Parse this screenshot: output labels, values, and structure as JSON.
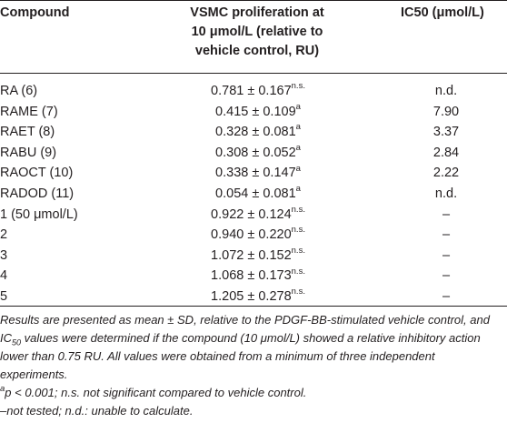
{
  "table": {
    "headers": {
      "compound": "Compound",
      "proliferation_line1": "VSMC proliferation at",
      "proliferation_line2": "10 μmol/L (relative to",
      "proliferation_line3": "vehicle control, RU)",
      "ic50": "IC50 (μmol/L)"
    },
    "rows": [
      {
        "compound": "RA (6)",
        "value": "0.781 ± 0.167",
        "sup": "n.s.",
        "ic50": "n.d."
      },
      {
        "compound": "RAME (7)",
        "value": "0.415 ± 0.109",
        "sup": "a",
        "ic50": "7.90"
      },
      {
        "compound": "RAET (8)",
        "value": "0.328 ± 0.081",
        "sup": "a",
        "ic50": "3.37"
      },
      {
        "compound": "RABU (9)",
        "value": "0.308 ± 0.052",
        "sup": "a",
        "ic50": "2.84"
      },
      {
        "compound": "RAOCT (10)",
        "value": "0.338 ± 0.147",
        "sup": "a",
        "ic50": "2.22"
      },
      {
        "compound": "RADOD (11)",
        "value": "0.054 ± 0.081",
        "sup": "a",
        "ic50": "n.d."
      },
      {
        "compound": "1 (50 μmol/L)",
        "value": "0.922 ± 0.124",
        "sup": "n.s.",
        "ic50": "–"
      },
      {
        "compound": "2",
        "value": "0.940 ± 0.220",
        "sup": "n.s.",
        "ic50": "–"
      },
      {
        "compound": "3",
        "value": "1.072 ± 0.152",
        "sup": "n.s.",
        "ic50": "–"
      },
      {
        "compound": "4",
        "value": "1.068 ± 0.173",
        "sup": "n.s.",
        "ic50": "–"
      },
      {
        "compound": "5",
        "value": "1.205 ± 0.278",
        "sup": "n.s.",
        "ic50": "–"
      }
    ]
  },
  "notes": {
    "results_part1": "Results are presented as mean ± SD, relative to the PDGF-BB-stimulated vehicle control, and IC",
    "results_sub": "50",
    "results_part2": " values were determined if the compound (10 μmol/L) showed a relative inhibitory action lower than 0.75 RU. All values were obtained from a minimum of three independent experiments.",
    "footnote_a_mark": "a",
    "footnote_a_text": "p < 0.001; n.s. not significant compared to vehicle control.",
    "footnote_dash": "–not tested; n.d.: unable to calculate."
  }
}
